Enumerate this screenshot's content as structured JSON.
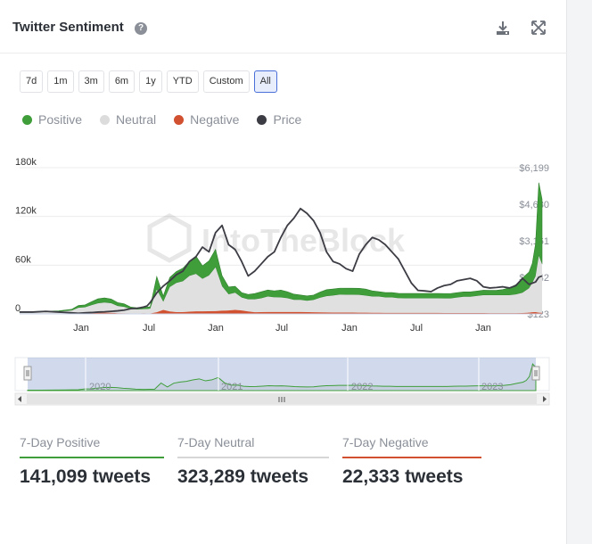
{
  "header": {
    "title": "Twitter Sentiment",
    "help_icon": "question-circle-icon",
    "download_icon": "download-icon",
    "expand_icon": "expand-icon"
  },
  "ranges": [
    {
      "label": "7d",
      "active": false
    },
    {
      "label": "1m",
      "active": false
    },
    {
      "label": "3m",
      "active": false
    },
    {
      "label": "6m",
      "active": false
    },
    {
      "label": "1y",
      "active": false
    },
    {
      "label": "YTD",
      "active": false
    },
    {
      "label": "Custom",
      "active": false
    },
    {
      "label": "All",
      "active": true
    }
  ],
  "legend": [
    {
      "label": "Positive",
      "color": "#3f9e3a"
    },
    {
      "label": "Neutral",
      "color": "#dcdcdc"
    },
    {
      "label": "Negative",
      "color": "#d0502f"
    },
    {
      "label": "Price",
      "color": "#3c3c44"
    }
  ],
  "watermark": "IntoTheBlock",
  "chart_data": {
    "type": "area",
    "x_tick_labels": [
      "Jan",
      "Jul",
      "Jan",
      "Jul",
      "Jan",
      "Jul",
      "Jan"
    ],
    "navigator_labels": [
      "2020",
      "2021",
      "2022",
      "2023"
    ],
    "y_left_ticks": [
      "0",
      "60k",
      "120k",
      "180k"
    ],
    "y_left_range": [
      0,
      180000
    ],
    "y_right_ticks": [
      "$123",
      "$1,642",
      "$3,161",
      "$4,680",
      "$6,199"
    ],
    "y_right_range": [
      123,
      6199
    ],
    "x": [
      0,
      2,
      4,
      6,
      8,
      9,
      10,
      11,
      12,
      13,
      14,
      15,
      16,
      17,
      18,
      18.5,
      19,
      19.5,
      20,
      21,
      22,
      23,
      24,
      25,
      26,
      27,
      28,
      29,
      30,
      31,
      32,
      33,
      34,
      35,
      36,
      37,
      38,
      39,
      40,
      41,
      42,
      43,
      44,
      45,
      46,
      47,
      48,
      49,
      50,
      51,
      52,
      53,
      54,
      55,
      56,
      57,
      58,
      59,
      60,
      61,
      62,
      63,
      64,
      65,
      66,
      67,
      68,
      69,
      70,
      71,
      72,
      73,
      74,
      75,
      76,
      77,
      78,
      78.5,
      79,
      79.5,
      80
    ],
    "series": [
      {
        "name": "Negative",
        "values": [
          200,
          200,
          300,
          300,
          600,
          800,
          900,
          1200,
          1500,
          1500,
          1400,
          800,
          700,
          500,
          500,
          600,
          700,
          600,
          500,
          2000,
          5000,
          3000,
          2200,
          2200,
          2800,
          3200,
          3200,
          3300,
          3400,
          4000,
          4200,
          5000,
          4200,
          3000,
          2000,
          2200,
          2400,
          2400,
          2300,
          2300,
          2300,
          2300,
          2200,
          2100,
          1900,
          1800,
          1700,
          1700,
          1600,
          1600,
          1500,
          1500,
          1400,
          1400,
          1300,
          1300,
          1300,
          1200,
          1200,
          1200,
          1200,
          1200,
          1200,
          1100,
          1100,
          1100,
          1100,
          1100,
          1100,
          1100,
          1000,
          1000,
          1000,
          1000,
          1000,
          1100,
          1500,
          2000,
          2200,
          1500,
          1200
        ]
      },
      {
        "name": "Neutral",
        "values": [
          1800,
          1900,
          2100,
          2400,
          3600,
          6800,
          7200,
          9500,
          11500,
          12500,
          11800,
          9000,
          8000,
          5500,
          5000,
          5000,
          5200,
          5500,
          6000,
          28000,
          10000,
          30000,
          36000,
          38000,
          44000,
          46000,
          40000,
          44000,
          54000,
          30000,
          20000,
          21000,
          16000,
          15000,
          16000,
          17000,
          19000,
          18000,
          18000,
          17000,
          15000,
          15000,
          14000,
          15000,
          18000,
          20000,
          21000,
          22000,
          22000,
          22000,
          22000,
          21000,
          20000,
          20000,
          19000,
          19000,
          18000,
          18000,
          18000,
          18000,
          18000,
          18000,
          18000,
          18000,
          18000,
          19000,
          20000,
          20000,
          21000,
          22000,
          22000,
          22000,
          22000,
          22000,
          23000,
          25000,
          30000,
          36000,
          44000,
          70000,
          60000
        ]
      },
      {
        "name": "Positive",
        "values": [
          800,
          800,
          900,
          1100,
          1500,
          2800,
          3000,
          4200,
          5600,
          5700,
          5200,
          4200,
          3700,
          2500,
          2000,
          2000,
          2200,
          2200,
          2400,
          16000,
          7000,
          12000,
          14000,
          16000,
          18000,
          22000,
          16000,
          18000,
          22000,
          13000,
          9000,
          8000,
          6000,
          6000,
          7000,
          8000,
          8000,
          8000,
          9000,
          8000,
          7000,
          6000,
          6000,
          6000,
          7000,
          8000,
          8000,
          8000,
          8000,
          8000,
          8000,
          8000,
          7000,
          6000,
          6000,
          6000,
          6000,
          6000,
          6000,
          6000,
          6000,
          6000,
          6000,
          6000,
          6000,
          6000,
          6000,
          6000,
          6000,
          6000,
          6000,
          6000,
          7000,
          9000,
          12000,
          18000,
          20000,
          24000,
          40000,
          90000,
          80000
        ]
      },
      {
        "name": "Price",
        "values": [
          200,
          200,
          230,
          200,
          170,
          150,
          170,
          180,
          200,
          210,
          230,
          250,
          280,
          340,
          360,
          380,
          410,
          450,
          600,
          1000,
          1280,
          1500,
          1750,
          1900,
          2300,
          2500,
          2900,
          2700,
          3500,
          3800,
          3000,
          2800,
          2300,
          1700,
          1900,
          2200,
          2500,
          2700,
          3300,
          3800,
          4100,
          4500,
          4300,
          4000,
          3500,
          2700,
          2300,
          2200,
          2000,
          1900,
          2600,
          3000,
          3300,
          3200,
          3000,
          2700,
          2400,
          1900,
          1400,
          1100,
          1080,
          1050,
          1200,
          1300,
          1350,
          1500,
          1550,
          1600,
          1500,
          1250,
          1200,
          1220,
          1250,
          1200,
          1300,
          1600,
          1350,
          1400,
          1450,
          1650,
          1700
        ]
      }
    ]
  },
  "stats": [
    {
      "label": "7-Day Positive",
      "value": "141,099 tweets",
      "color": "#3f9e3a",
      "width": 162
    },
    {
      "label": "7-Day Neutral",
      "value": "323,289 tweets",
      "color": "#d6d6d6",
      "width": 170
    },
    {
      "label": "7-Day Negative",
      "value": "22,333 tweets",
      "color": "#d0502f",
      "width": 156
    }
  ]
}
